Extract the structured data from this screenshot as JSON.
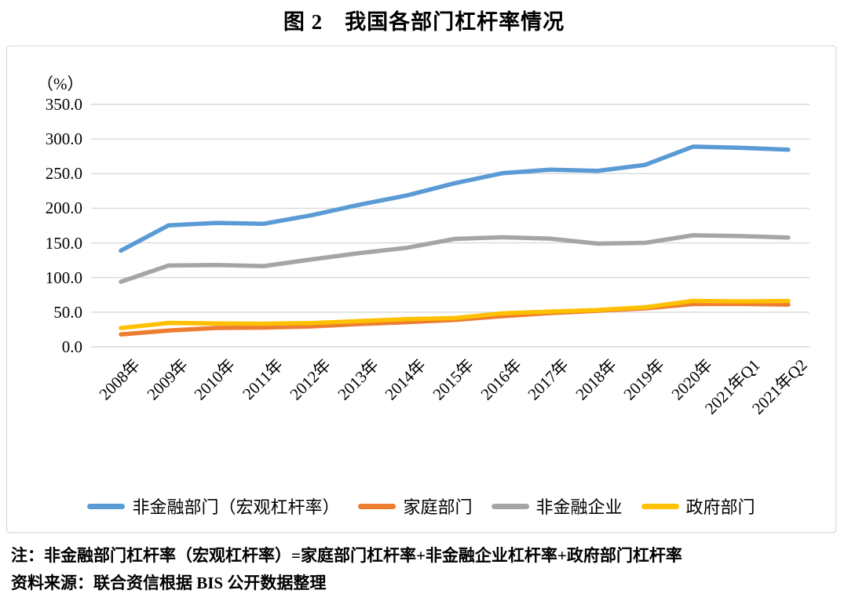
{
  "title": "图 2　我国各部门杠杆率情况",
  "chart_data": {
    "type": "line",
    "title": "图 2　我国各部门杠杆率情况",
    "unit_label": "（%）",
    "xlabel": "",
    "ylabel": "（%）",
    "ylim": [
      0,
      350
    ],
    "ytick_step": 50,
    "yticks": [
      "350.0",
      "300.0",
      "250.0",
      "200.0",
      "150.0",
      "100.0",
      "50.0",
      "0.0"
    ],
    "grid": true,
    "gridline_color": "#d9d9d9",
    "legend_position": "bottom",
    "categories": [
      "2008年",
      "2009年",
      "2010年",
      "2011年",
      "2012年",
      "2013年",
      "2014年",
      "2015年",
      "2016年",
      "2017年",
      "2018年",
      "2019年",
      "2020年",
      "2021年Q1",
      "2021年Q2"
    ],
    "series": [
      {
        "name": "非金融部门（宏观杠杆率）",
        "color": "#5B9BD5",
        "values": [
          138.9,
          175.3,
          178.9,
          177.6,
          190.0,
          205.1,
          218.5,
          236.0,
          250.5,
          255.8,
          254.0,
          262.7,
          288.9,
          287.2,
          284.7
        ]
      },
      {
        "name": "家庭部门",
        "color": "#ED7D31",
        "values": [
          17.9,
          23.5,
          27.2,
          27.7,
          29.5,
          32.9,
          35.6,
          38.7,
          44.2,
          48.7,
          52.0,
          55.5,
          61.7,
          61.8,
          60.9
        ]
      },
      {
        "name": "非金融企业",
        "color": "#A5A5A5",
        "values": [
          93.9,
          117.4,
          118.0,
          116.6,
          126.2,
          135.2,
          143.0,
          155.8,
          158.1,
          156.2,
          148.9,
          150.1,
          160.9,
          159.8,
          157.7
        ]
      },
      {
        "name": "政府部门",
        "color": "#FFC000",
        "values": [
          27.1,
          34.4,
          33.7,
          33.3,
          34.3,
          37.0,
          39.9,
          41.5,
          48.2,
          50.9,
          53.1,
          57.1,
          66.3,
          65.6,
          66.1
        ]
      }
    ]
  },
  "notes": {
    "formula": "注：非金融部门杠杆率（宏观杠杆率）=家庭部门杠杆率+非金融企业杠杆率+政府部门杠杆率",
    "source": "资料来源：联合资信根据 BIS 公开数据整理"
  }
}
